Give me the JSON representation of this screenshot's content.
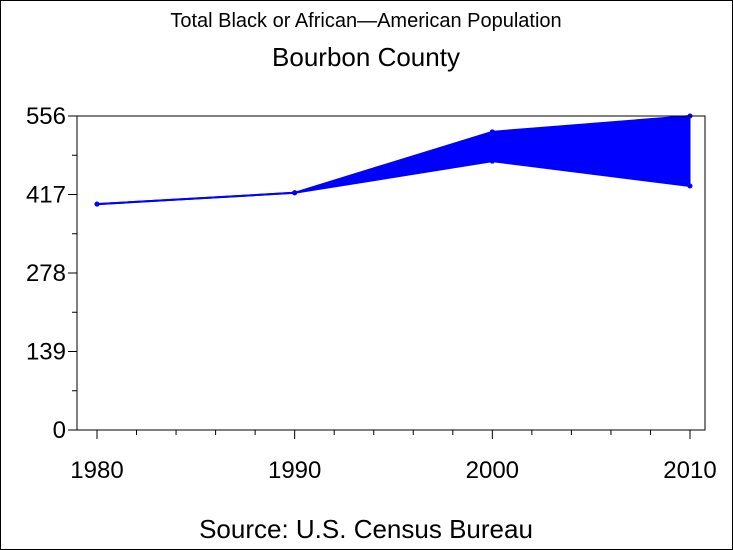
{
  "chart_data": {
    "type": "area",
    "title": "Total Black or African—American Population",
    "subtitle": "Bourbon County",
    "footnote": "Source: U.S. Census Bureau",
    "x": [
      1980,
      1990,
      2000,
      2010
    ],
    "x_tick_labels": [
      "1980",
      "1990",
      "2000",
      "2010"
    ],
    "y_tick_labels": [
      "0",
      "139",
      "278",
      "417",
      "556"
    ],
    "ylim": [
      0,
      556
    ],
    "xlim": [
      1980,
      2010
    ],
    "series": [
      {
        "values": [
          400,
          420,
          528,
          556
        ]
      },
      {
        "values": [
          400,
          420,
          476,
          432
        ]
      }
    ],
    "fill_color": "#0000ff",
    "line_color": "#0000ff",
    "grid": false
  }
}
